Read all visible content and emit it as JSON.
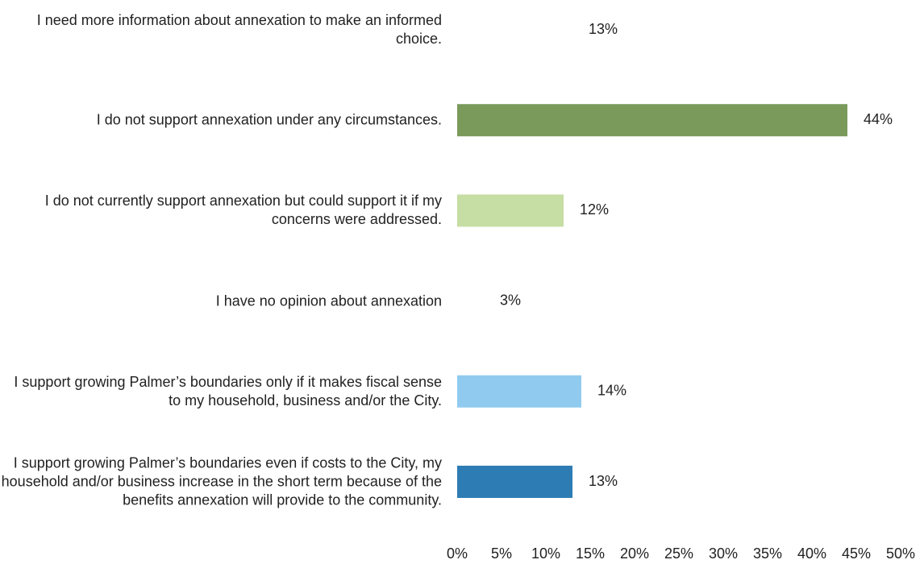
{
  "chart_data": {
    "type": "bar",
    "orientation": "horizontal",
    "categories": [
      "I need more information about annexation to make an informed choice.",
      "I do not support annexation under any circumstances.",
      "I do not currently support annexation but could support it if my concerns were addressed.",
      "I have no opinion about annexation",
      "I support growing Palmer’s boundaries only if it makes fiscal sense to my household, business and/or the City.",
      "I support growing Palmer’s boundaries even if costs to the City, my household and/or business increase in the short term because of the benefits annexation will provide to the community."
    ],
    "values": [
      13,
      44,
      12,
      3,
      14,
      13
    ],
    "value_labels": [
      "13%",
      "44%",
      "12%",
      "3%",
      "14%",
      "13%"
    ],
    "colors": [
      "#ffffff",
      "#7a9a5c",
      "#c6dda3",
      "#ffffff",
      "#90cbef",
      "#2e7cb4"
    ],
    "xlim": [
      0,
      50
    ],
    "xticks": [
      {
        "value": 0,
        "label": "0%"
      },
      {
        "value": 5,
        "label": "5%"
      },
      {
        "value": 10,
        "label": "10%"
      },
      {
        "value": 15,
        "label": "15%"
      },
      {
        "value": 20,
        "label": "20%"
      },
      {
        "value": 25,
        "label": "25%"
      },
      {
        "value": 30,
        "label": "30%"
      },
      {
        "value": 35,
        "label": "35%"
      },
      {
        "value": 40,
        "label": "40%"
      },
      {
        "value": 45,
        "label": "45%"
      },
      {
        "value": 50,
        "label": "50%"
      }
    ],
    "grid": false
  }
}
